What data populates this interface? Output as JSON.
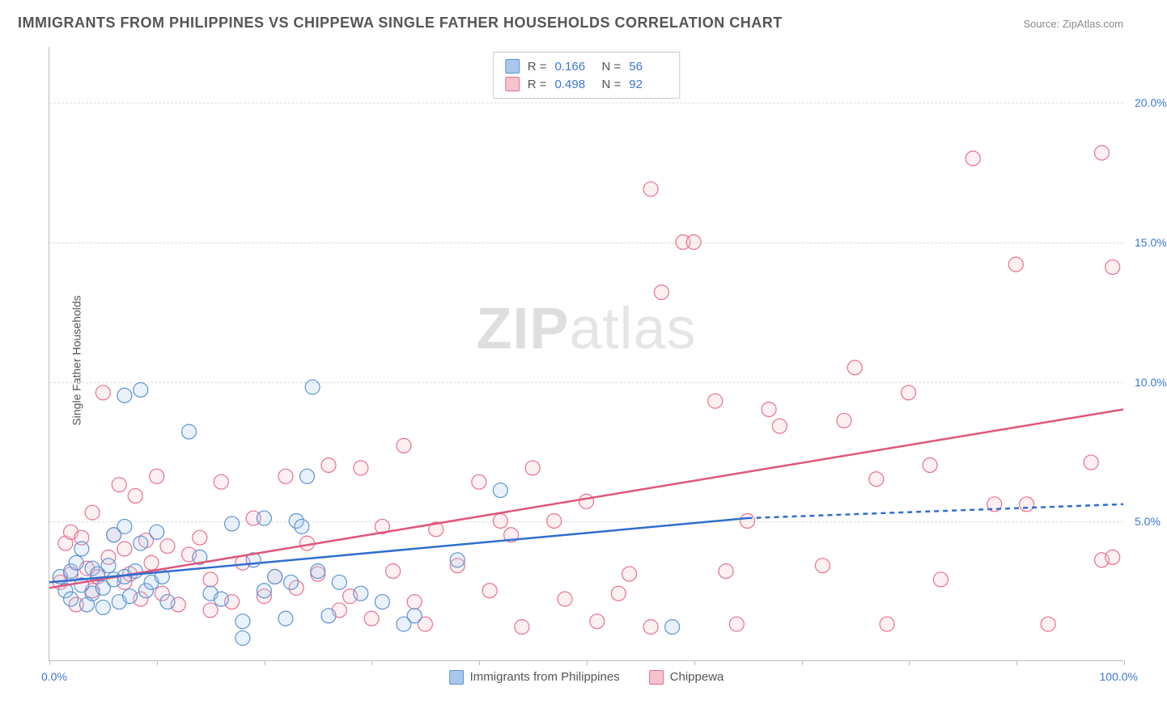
{
  "title": "IMMIGRANTS FROM PHILIPPINES VS CHIPPEWA SINGLE FATHER HOUSEHOLDS CORRELATION CHART",
  "source_label": "Source: ",
  "source_name": "ZipAtlas.com",
  "ylabel": "Single Father Households",
  "watermark_a": "ZIP",
  "watermark_b": "atlas",
  "chart": {
    "type": "scatter",
    "xlim": [
      0,
      100
    ],
    "ylim": [
      0,
      22
    ],
    "x_tick_step": 10,
    "y_ticks": [
      5,
      10,
      15,
      20
    ],
    "x_min_label": "0.0%",
    "x_max_label": "100.0%",
    "y_tick_labels": [
      "5.0%",
      "10.0%",
      "15.0%",
      "20.0%"
    ],
    "background_color": "#ffffff",
    "grid_color": "#dddddd",
    "axis_color": "#bbbbbb",
    "text_color": "#555555",
    "value_color": "#3b76d6",
    "marker_radius": 9,
    "series": [
      {
        "id": "philippines",
        "label": "Immigrants from Philippines",
        "color_fill": "#a9c7ec",
        "color_stroke": "#5c93d6",
        "line_color": "#2f6ecf",
        "r_value": "0.166",
        "n_value": "56",
        "regression": {
          "x1": 0,
          "y1": 2.8,
          "x2": 65,
          "y2": 5.1,
          "dash_x2": 100,
          "dash_y2": 5.6
        },
        "points": [
          [
            1,
            3.0
          ],
          [
            1.5,
            2.5
          ],
          [
            2,
            3.2
          ],
          [
            2,
            2.2
          ],
          [
            2.5,
            3.5
          ],
          [
            3,
            2.7
          ],
          [
            3,
            4.0
          ],
          [
            3.5,
            2.0
          ],
          [
            4,
            3.3
          ],
          [
            4,
            2.4
          ],
          [
            4.5,
            3.1
          ],
          [
            5,
            2.6
          ],
          [
            5,
            1.9
          ],
          [
            5.5,
            3.4
          ],
          [
            6,
            2.9
          ],
          [
            6,
            4.5
          ],
          [
            6.5,
            2.1
          ],
          [
            7,
            4.8
          ],
          [
            7,
            3.0
          ],
          [
            7.5,
            2.3
          ],
          [
            8,
            3.2
          ],
          [
            8.5,
            4.2
          ],
          [
            9,
            2.5
          ],
          [
            9.5,
            2.8
          ],
          [
            10,
            4.6
          ],
          [
            10.5,
            3.0
          ],
          [
            11,
            2.1
          ],
          [
            8.5,
            9.7
          ],
          [
            7,
            9.5
          ],
          [
            13,
            8.2
          ],
          [
            14,
            3.7
          ],
          [
            15,
            2.4
          ],
          [
            16,
            2.2
          ],
          [
            17,
            4.9
          ],
          [
            18,
            1.4
          ],
          [
            18,
            0.8
          ],
          [
            19,
            3.6
          ],
          [
            20,
            2.5
          ],
          [
            20,
            5.1
          ],
          [
            21,
            3.0
          ],
          [
            22,
            1.5
          ],
          [
            22.5,
            2.8
          ],
          [
            23,
            5.0
          ],
          [
            23.5,
            4.8
          ],
          [
            24,
            6.6
          ],
          [
            24.5,
            9.8
          ],
          [
            25,
            3.2
          ],
          [
            26,
            1.6
          ],
          [
            27,
            2.8
          ],
          [
            29,
            2.4
          ],
          [
            31,
            2.1
          ],
          [
            33,
            1.3
          ],
          [
            34,
            1.6
          ],
          [
            42,
            6.1
          ],
          [
            38,
            3.6
          ],
          [
            58,
            1.2
          ]
        ]
      },
      {
        "id": "chippewa",
        "label": "Chippewa",
        "color_fill": "#f5c2cd",
        "color_stroke": "#e96f8e",
        "line_color": "#e25578",
        "r_value": "0.498",
        "n_value": "92",
        "regression": {
          "x1": 0,
          "y1": 2.6,
          "x2": 100,
          "y2": 9.0
        },
        "points": [
          [
            1,
            2.8
          ],
          [
            1.5,
            4.2
          ],
          [
            2,
            3.1
          ],
          [
            2,
            4.6
          ],
          [
            2.5,
            2.0
          ],
          [
            3,
            4.4
          ],
          [
            3.5,
            3.3
          ],
          [
            4,
            2.5
          ],
          [
            4,
            5.3
          ],
          [
            4.5,
            3.0
          ],
          [
            5,
            9.6
          ],
          [
            5.5,
            3.7
          ],
          [
            6,
            4.5
          ],
          [
            6.5,
            6.3
          ],
          [
            7,
            2.8
          ],
          [
            7,
            4.0
          ],
          [
            7.5,
            3.1
          ],
          [
            8,
            5.9
          ],
          [
            8.5,
            2.2
          ],
          [
            9,
            4.3
          ],
          [
            9.5,
            3.5
          ],
          [
            10,
            6.6
          ],
          [
            10.5,
            2.4
          ],
          [
            11,
            4.1
          ],
          [
            12,
            2.0
          ],
          [
            13,
            3.8
          ],
          [
            14,
            4.4
          ],
          [
            15,
            1.8
          ],
          [
            15,
            2.9
          ],
          [
            16,
            6.4
          ],
          [
            17,
            2.1
          ],
          [
            18,
            3.5
          ],
          [
            19,
            5.1
          ],
          [
            20,
            2.3
          ],
          [
            21,
            3.0
          ],
          [
            22,
            6.6
          ],
          [
            23,
            2.6
          ],
          [
            24,
            4.2
          ],
          [
            25,
            3.1
          ],
          [
            26,
            7.0
          ],
          [
            27,
            1.8
          ],
          [
            28,
            2.3
          ],
          [
            29,
            6.9
          ],
          [
            30,
            1.5
          ],
          [
            31,
            4.8
          ],
          [
            32,
            3.2
          ],
          [
            33,
            7.7
          ],
          [
            34,
            2.1
          ],
          [
            35,
            1.3
          ],
          [
            36,
            4.7
          ],
          [
            38,
            3.4
          ],
          [
            40,
            6.4
          ],
          [
            41,
            2.5
          ],
          [
            42,
            5.0
          ],
          [
            43,
            4.5
          ],
          [
            44,
            1.2
          ],
          [
            45,
            6.9
          ],
          [
            47,
            5.0
          ],
          [
            48,
            2.2
          ],
          [
            50,
            5.7
          ],
          [
            51,
            1.4
          ],
          [
            53,
            2.4
          ],
          [
            54,
            3.1
          ],
          [
            56,
            16.9
          ],
          [
            56,
            1.2
          ],
          [
            57,
            13.2
          ],
          [
            59,
            15.0
          ],
          [
            60,
            15.0
          ],
          [
            62,
            9.3
          ],
          [
            63,
            3.2
          ],
          [
            64,
            1.3
          ],
          [
            65,
            5.0
          ],
          [
            67,
            9.0
          ],
          [
            68,
            8.4
          ],
          [
            72,
            3.4
          ],
          [
            74,
            8.6
          ],
          [
            75,
            10.5
          ],
          [
            77,
            6.5
          ],
          [
            78,
            1.3
          ],
          [
            80,
            9.6
          ],
          [
            82,
            7.0
          ],
          [
            83,
            2.9
          ],
          [
            86,
            18.0
          ],
          [
            88,
            5.6
          ],
          [
            90,
            14.2
          ],
          [
            91,
            5.6
          ],
          [
            93,
            1.3
          ],
          [
            97,
            7.1
          ],
          [
            98,
            3.6
          ],
          [
            98,
            18.2
          ],
          [
            99,
            14.1
          ],
          [
            99,
            3.7
          ]
        ]
      }
    ],
    "x_legend": {
      "items": [
        {
          "swatch_fill": "#a9c7ec",
          "swatch_stroke": "#5c93d6",
          "bind": "chart.series.0.label"
        },
        {
          "swatch_fill": "#f5c2cd",
          "swatch_stroke": "#e96f8e",
          "bind": "chart.series.1.label"
        }
      ]
    }
  },
  "stats_labels": {
    "r": "R  =",
    "n": "N  ="
  }
}
